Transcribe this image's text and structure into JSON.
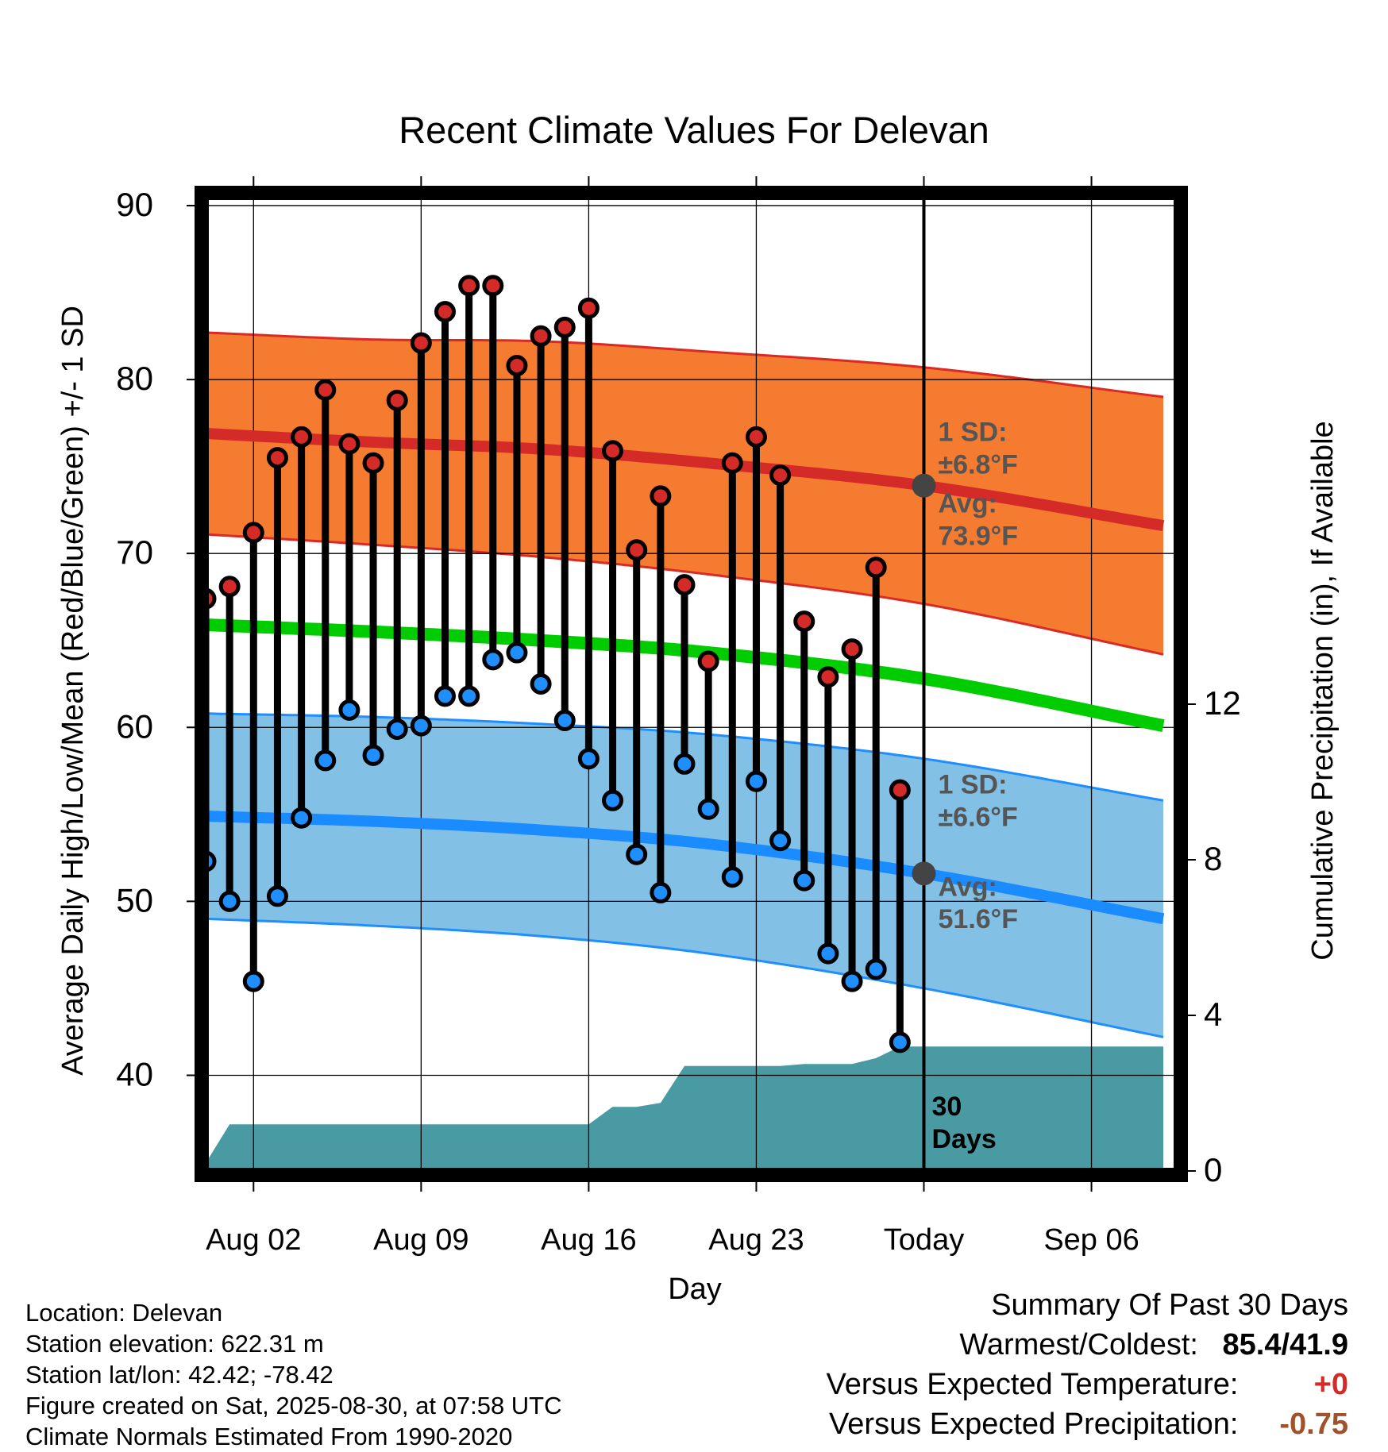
{
  "chart_data": {
    "type": "temperature-range-with-precipitation",
    "title": "Recent Climate Values For Delevan",
    "xlabel": "Day",
    "ylabel_left": "Average Daily High/Low/Mean (Red/Blue/Green) +/- 1 SD",
    "ylabel_right": "Cumulative Precipitation (in), If Available",
    "y_left_range": [
      34.5,
      90.5
    ],
    "y_left_ticks": [
      40,
      50,
      60,
      70,
      80,
      90
    ],
    "y_right_ticks": [
      0,
      4,
      8,
      12
    ],
    "x_ticks": [
      "Aug 02",
      "Aug 09",
      "Aug 16",
      "Aug 23",
      "Today",
      "Sep 06"
    ],
    "x_start": "2025-07-31",
    "today": "2025-08-30",
    "days": [
      "2025-07-31",
      "2025-08-01",
      "2025-08-02",
      "2025-08-03",
      "2025-08-04",
      "2025-08-05",
      "2025-08-06",
      "2025-08-07",
      "2025-08-08",
      "2025-08-09",
      "2025-08-10",
      "2025-08-11",
      "2025-08-12",
      "2025-08-13",
      "2025-08-14",
      "2025-08-15",
      "2025-08-16",
      "2025-08-17",
      "2025-08-18",
      "2025-08-19",
      "2025-08-20",
      "2025-08-21",
      "2025-08-22",
      "2025-08-23",
      "2025-08-24",
      "2025-08-25",
      "2025-08-26",
      "2025-08-27",
      "2025-08-28",
      "2025-08-29"
    ],
    "observed_high": [
      67.4,
      68.1,
      71.2,
      75.5,
      76.7,
      79.4,
      76.3,
      75.2,
      78.8,
      82.1,
      83.9,
      85.4,
      85.4,
      80.8,
      82.5,
      83.0,
      84.1,
      75.9,
      70.2,
      73.3,
      68.2,
      63.8,
      75.2,
      76.7,
      74.5,
      66.1,
      62.9,
      64.5,
      69.2,
      56.4
    ],
    "observed_low": [
      52.3,
      50.0,
      45.4,
      50.3,
      54.8,
      58.1,
      61.0,
      58.4,
      59.9,
      60.1,
      61.8,
      61.8,
      63.9,
      64.3,
      62.5,
      60.4,
      58.2,
      55.8,
      52.7,
      50.5,
      57.9,
      55.3,
      51.4,
      56.9,
      53.5,
      51.2,
      47.0,
      45.4,
      46.1,
      41.9
    ],
    "normals": [
      {
        "date": "2025-07-31",
        "high_avg": 76.9,
        "high_sd": 5.8,
        "low_avg": 54.9,
        "low_sd": 5.9,
        "mean_avg": 65.9
      },
      {
        "date": "2025-08-07",
        "high_avg": 76.4,
        "high_sd": 5.9,
        "low_avg": 54.6,
        "low_sd": 6.0,
        "mean_avg": 65.5
      },
      {
        "date": "2025-08-14",
        "high_avg": 76.0,
        "high_sd": 6.2,
        "low_avg": 54.1,
        "low_sd": 6.1,
        "mean_avg": 65.0
      },
      {
        "date": "2025-08-21",
        "high_avg": 75.2,
        "high_sd": 6.4,
        "low_avg": 53.3,
        "low_sd": 6.3,
        "mean_avg": 64.3
      },
      {
        "date": "2025-08-30",
        "high_avg": 73.9,
        "high_sd": 6.8,
        "low_avg": 51.6,
        "low_sd": 6.6,
        "mean_avg": 62.8
      },
      {
        "date": "2025-09-09",
        "high_avg": 71.6,
        "high_sd": 7.4,
        "low_avg": 49.0,
        "low_sd": 6.8,
        "mean_avg": 60.1
      }
    ],
    "cumulative_precip": [
      {
        "date": "2025-07-31",
        "value": 0.2
      },
      {
        "date": "2025-08-01",
        "value": 1.2
      },
      {
        "date": "2025-08-16",
        "value": 1.2
      },
      {
        "date": "2025-08-17",
        "value": 1.65
      },
      {
        "date": "2025-08-18",
        "value": 1.65
      },
      {
        "date": "2025-08-19",
        "value": 1.75
      },
      {
        "date": "2025-08-20",
        "value": 2.7
      },
      {
        "date": "2025-08-24",
        "value": 2.7
      },
      {
        "date": "2025-08-25",
        "value": 2.75
      },
      {
        "date": "2025-08-27",
        "value": 2.75
      },
      {
        "date": "2025-08-28",
        "value": 2.9
      },
      {
        "date": "2025-08-29",
        "value": 3.2
      },
      {
        "date": "2025-09-09",
        "value": 3.2
      }
    ],
    "annotations": {
      "high_sd_label": [
        "1 SD:",
        "±6.8°F"
      ],
      "high_avg_label": [
        "Avg:",
        "73.9°F"
      ],
      "low_sd_label": [
        "1 SD:",
        "±6.6°F"
      ],
      "low_avg_label": [
        "Avg:",
        "51.6°F"
      ],
      "days_label": [
        "30",
        "Days"
      ]
    },
    "colors": {
      "high_band": "#f47b30",
      "high_band_edge": "#d92a25",
      "high_avg_line": "#d42a28",
      "low_band": "#82c0e6",
      "low_band_edge": "#1f8fff",
      "low_avg_line": "#1b8cff",
      "mean_line": "#00cc00",
      "precip": "#4a9aa3",
      "high_dot": "#d42a28",
      "low_dot": "#1f8fff",
      "today_marker": "#444444"
    }
  },
  "footer": {
    "location": "Location: Delevan",
    "elevation": "Station elevation: 622.31 m",
    "latlon": "Station lat/lon: 42.42; -78.42",
    "created": "Figure created on Sat, 2025-08-30, at 07:58 UTC",
    "normals": "Climate Normals Estimated From 1990-2020"
  },
  "summary": {
    "title": "Summary Of Past 30 Days",
    "warmest_label": "Warmest/Coldest:",
    "warmest_value": "85.4/41.9",
    "temp_label": "Versus Expected Temperature:",
    "temp_value": "+0",
    "temp_color": "#d42a28",
    "precip_label": "Versus Expected Precipitation:",
    "precip_value": "-0.75",
    "precip_color": "#a0522d"
  }
}
